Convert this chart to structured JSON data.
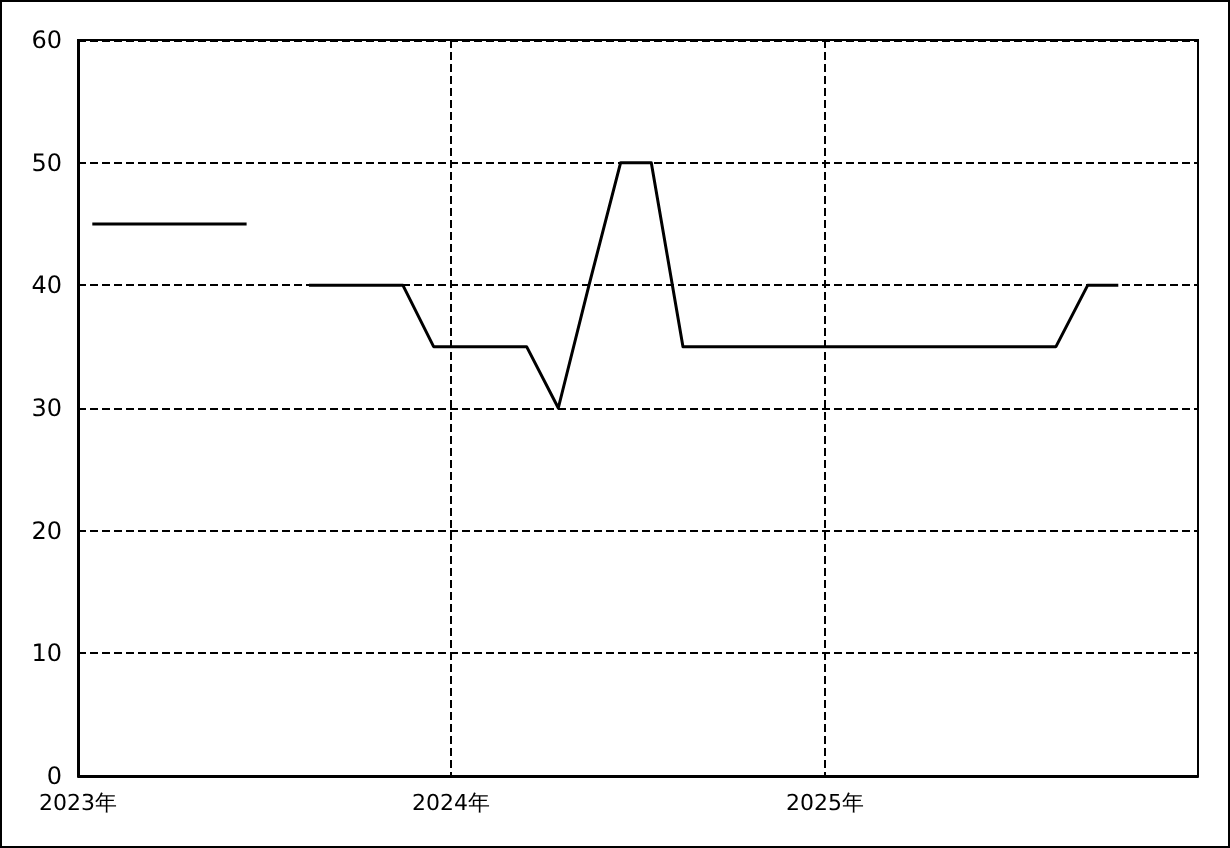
{
  "chart_data": {
    "type": "line",
    "x": [
      "2023-01-15",
      "2023-02-15",
      "2023-03-15",
      "2023-04-15",
      "2023-05-15",
      "2023-06-15",
      "2023-07-15",
      "2023-08-15",
      "2023-09-15",
      "2023-10-15",
      "2023-11-15",
      "2023-12-15",
      "2024-01-15",
      "2024-02-15",
      "2024-03-15",
      "2024-04-15",
      "2024-05-15",
      "2024-06-15",
      "2024-07-15",
      "2024-08-15",
      "2024-09-15",
      "2024-10-15",
      "2024-11-15",
      "2024-12-15",
      "2025-01-15",
      "2025-02-15",
      "2025-03-15",
      "2025-04-15",
      "2025-05-15",
      "2025-06-15",
      "2025-07-15",
      "2025-08-15",
      "2025-09-15",
      "2025-10-15"
    ],
    "series": [
      {
        "color": "#000000",
        "values": [
          45,
          45,
          45,
          45,
          45,
          45,
          null,
          40,
          40,
          40,
          40,
          35,
          35,
          35,
          35,
          30,
          40,
          50,
          50,
          35,
          35,
          35,
          35,
          35,
          35,
          35,
          35,
          35,
          35,
          35,
          35,
          35,
          40,
          40
        ]
      }
    ],
    "xlim": [
      "2023-01-01",
      "2026-01-01"
    ],
    "xticks": [
      {
        "value": "2023-01-01",
        "label": "2023年"
      },
      {
        "value": "2024-01-01",
        "label": "2024年"
      },
      {
        "value": "2025-01-01",
        "label": "2025年"
      }
    ],
    "ylim": [
      0,
      60
    ],
    "yticks": [
      0,
      10,
      20,
      30,
      40,
      50,
      60
    ],
    "grid": true,
    "marker": "none",
    "line_style": "solid"
  }
}
